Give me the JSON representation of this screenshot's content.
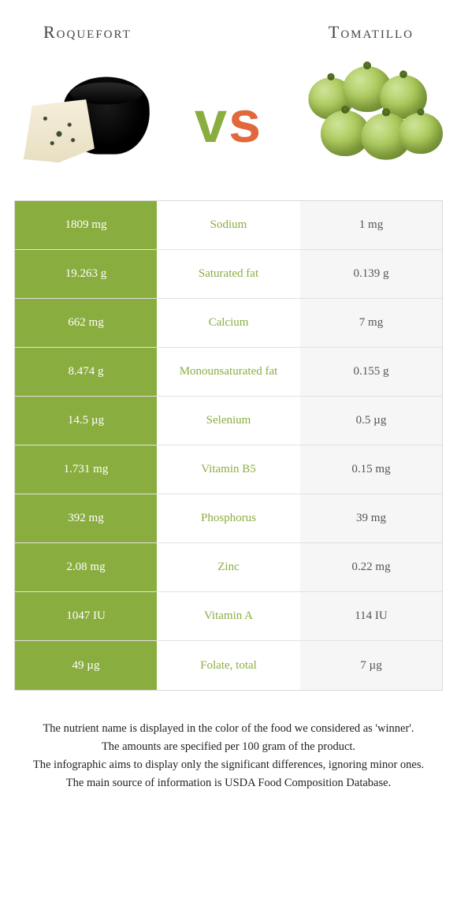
{
  "header": {
    "left_name": "Roquefort",
    "right_name": "Tomatillo"
  },
  "vs": {
    "v": "v",
    "s": "s"
  },
  "colors": {
    "left_win_bg": "#8aad3f",
    "right_win_bg": "#e0683b",
    "neutral_bg": "#f6f6f6",
    "border": "#d9d9d9",
    "row_border": "#e2e2e2",
    "text_on_win": "#ffffff",
    "text_neutral": "#555555"
  },
  "table": {
    "rows": [
      {
        "nutrient": "Sodium",
        "left": "1809 mg",
        "right": "1 mg",
        "winner": "left"
      },
      {
        "nutrient": "Saturated fat",
        "left": "19.263 g",
        "right": "0.139 g",
        "winner": "left"
      },
      {
        "nutrient": "Calcium",
        "left": "662 mg",
        "right": "7 mg",
        "winner": "left"
      },
      {
        "nutrient": "Monounsaturated fat",
        "left": "8.474 g",
        "right": "0.155 g",
        "winner": "left"
      },
      {
        "nutrient": "Selenium",
        "left": "14.5 µg",
        "right": "0.5 µg",
        "winner": "left"
      },
      {
        "nutrient": "Vitamin B5",
        "left": "1.731 mg",
        "right": "0.15 mg",
        "winner": "left"
      },
      {
        "nutrient": "Phosphorus",
        "left": "392 mg",
        "right": "39 mg",
        "winner": "left"
      },
      {
        "nutrient": "Zinc",
        "left": "2.08 mg",
        "right": "0.22 mg",
        "winner": "left"
      },
      {
        "nutrient": "Vitamin A",
        "left": "1047 IU",
        "right": "114 IU",
        "winner": "left"
      },
      {
        "nutrient": "Folate, total",
        "left": "49 µg",
        "right": "7 µg",
        "winner": "left"
      }
    ]
  },
  "footer": {
    "line1": "The nutrient name is displayed in the color of the food we considered as 'winner'.",
    "line2": "The amounts are specified per 100 gram of the product.",
    "line3": "The infographic aims to display only the significant differences, ignoring minor ones.",
    "line4": "The main source of information is USDA Food Composition Database."
  }
}
